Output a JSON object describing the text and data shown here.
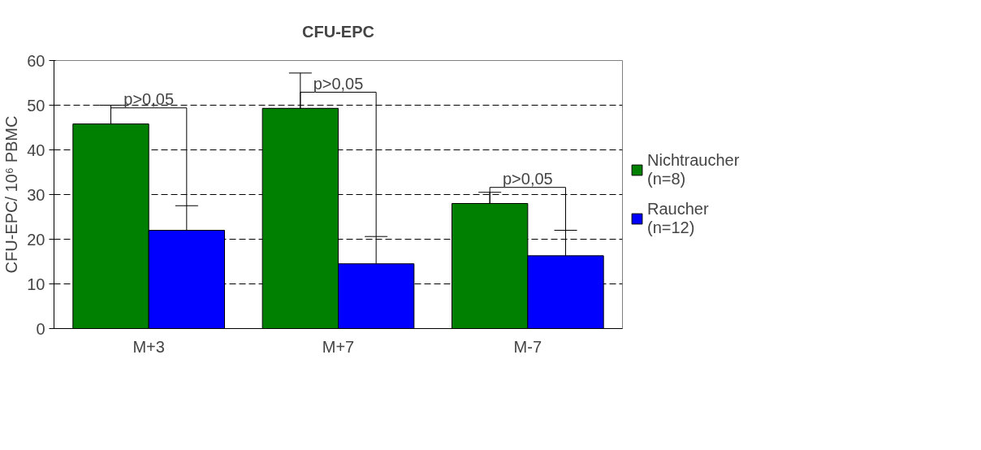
{
  "chart_data": {
    "type": "bar",
    "title": "CFU-EPC",
    "ylabel": "CFU-EPC/ 10⁶ PBMC",
    "categories": [
      "M+3",
      "M+7",
      "M-7"
    ],
    "series": [
      {
        "name": "Nichtraucher (n=8)",
        "color": "#008000",
        "values": [
          45.8,
          49.3,
          28
        ],
        "errors": [
          [
            45.8,
            50
          ],
          [
            49.3,
            57.2
          ],
          [
            28,
            30.5
          ]
        ]
      },
      {
        "name": "Raucher (n=12)",
        "color": "#0000ff",
        "values": [
          22,
          14.5,
          16.3
        ],
        "errors": [
          [
            22,
            27.5
          ],
          [
            14.5,
            20.6
          ],
          [
            16.3,
            22
          ]
        ]
      }
    ],
    "ylim": [
      0,
      60
    ],
    "yticks": [
      0,
      10,
      20,
      30,
      40,
      50,
      60
    ],
    "grid": "y",
    "legend": "right",
    "annotations": [
      {
        "text": "p>0,05",
        "x": "M+3",
        "y": 45.8
      },
      {
        "text": "p>0,05",
        "x": "M+7",
        "y": 49.3
      },
      {
        "text": "p>0,05",
        "x": "M-7",
        "y": 28
      }
    ]
  }
}
